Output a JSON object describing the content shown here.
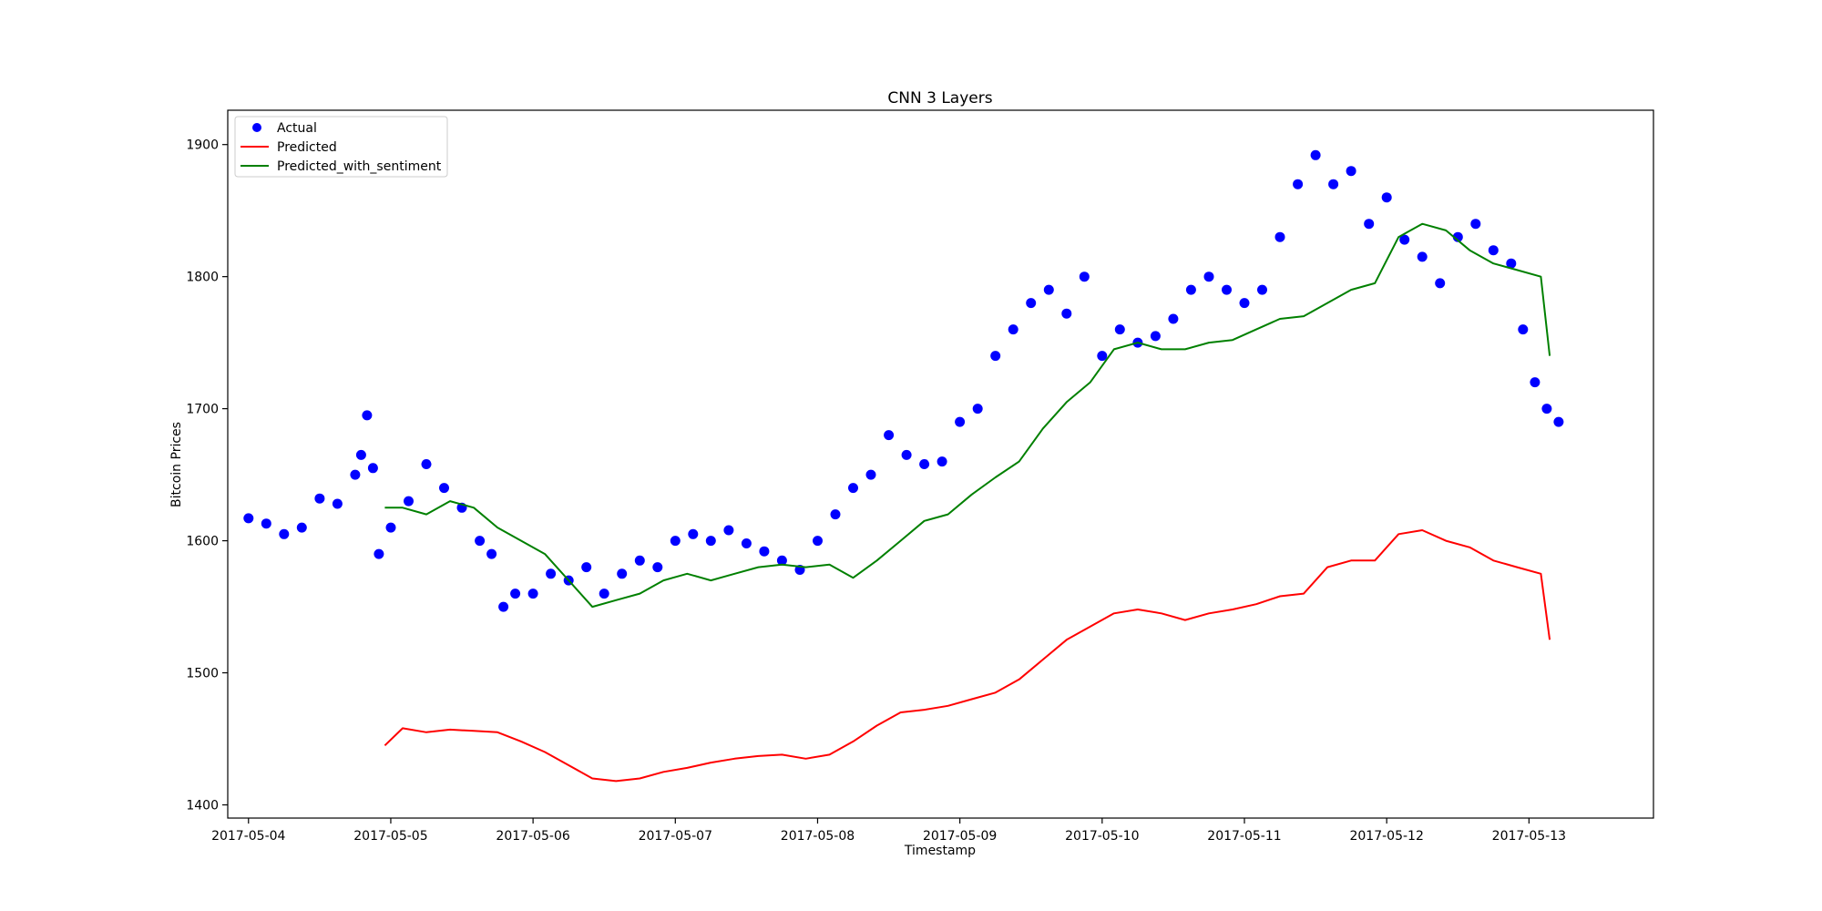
{
  "chart_data": {
    "type": "line",
    "title": "CNN 3 Layers",
    "xlabel": "Timestamp",
    "ylabel": "Bitcoin Prices",
    "xlim": [
      "2017-05-03T20:30",
      "2017-05-13T21:00"
    ],
    "ylim": [
      1390,
      1926
    ],
    "x_ticks": [
      "2017-05-04",
      "2017-05-05",
      "2017-05-06",
      "2017-05-07",
      "2017-05-08",
      "2017-05-09",
      "2017-05-10",
      "2017-05-11",
      "2017-05-12",
      "2017-05-13"
    ],
    "y_ticks": [
      1400,
      1500,
      1600,
      1700,
      1800,
      1900
    ],
    "grid": false,
    "legend": {
      "placement": "top-left"
    },
    "series": [
      {
        "name": "Actual",
        "marker": "circle",
        "color": "#0000ff",
        "x": [
          "2017-05-04T00:00",
          "2017-05-04T03:00",
          "2017-05-04T06:00",
          "2017-05-04T09:00",
          "2017-05-04T12:00",
          "2017-05-04T15:00",
          "2017-05-04T18:00",
          "2017-05-04T19:00",
          "2017-05-04T20:00",
          "2017-05-04T21:00",
          "2017-05-04T22:00",
          "2017-05-05T00:00",
          "2017-05-05T03:00",
          "2017-05-05T06:00",
          "2017-05-05T09:00",
          "2017-05-05T12:00",
          "2017-05-05T15:00",
          "2017-05-05T17:00",
          "2017-05-05T19:00",
          "2017-05-05T21:00",
          "2017-05-06T00:00",
          "2017-05-06T03:00",
          "2017-05-06T06:00",
          "2017-05-06T09:00",
          "2017-05-06T12:00",
          "2017-05-06T15:00",
          "2017-05-06T18:00",
          "2017-05-06T21:00",
          "2017-05-07T00:00",
          "2017-05-07T03:00",
          "2017-05-07T06:00",
          "2017-05-07T09:00",
          "2017-05-07T12:00",
          "2017-05-07T15:00",
          "2017-05-07T18:00",
          "2017-05-07T21:00",
          "2017-05-08T00:00",
          "2017-05-08T03:00",
          "2017-05-08T06:00",
          "2017-05-08T09:00",
          "2017-05-08T12:00",
          "2017-05-08T15:00",
          "2017-05-08T18:00",
          "2017-05-08T21:00",
          "2017-05-09T00:00",
          "2017-05-09T03:00",
          "2017-05-09T06:00",
          "2017-05-09T09:00",
          "2017-05-09T12:00",
          "2017-05-09T15:00",
          "2017-05-09T18:00",
          "2017-05-09T21:00",
          "2017-05-10T00:00",
          "2017-05-10T03:00",
          "2017-05-10T06:00",
          "2017-05-10T09:00",
          "2017-05-10T12:00",
          "2017-05-10T15:00",
          "2017-05-10T18:00",
          "2017-05-10T21:00",
          "2017-05-11T00:00",
          "2017-05-11T03:00",
          "2017-05-11T06:00",
          "2017-05-11T09:00",
          "2017-05-11T12:00",
          "2017-05-11T15:00",
          "2017-05-11T18:00",
          "2017-05-11T21:00",
          "2017-05-12T00:00",
          "2017-05-12T03:00",
          "2017-05-12T06:00",
          "2017-05-12T09:00",
          "2017-05-12T12:00",
          "2017-05-12T15:00",
          "2017-05-12T18:00",
          "2017-05-12T21:00",
          "2017-05-12T23:00",
          "2017-05-13T01:00",
          "2017-05-13T03:00",
          "2017-05-13T05:00"
        ],
        "values": [
          1617,
          1613,
          1605,
          1610,
          1632,
          1628,
          1650,
          1665,
          1695,
          1655,
          1590,
          1610,
          1630,
          1658,
          1640,
          1625,
          1600,
          1590,
          1550,
          1560,
          1560,
          1575,
          1570,
          1580,
          1560,
          1575,
          1585,
          1580,
          1600,
          1605,
          1600,
          1608,
          1598,
          1592,
          1585,
          1578,
          1600,
          1620,
          1640,
          1650,
          1680,
          1665,
          1658,
          1660,
          1690,
          1700,
          1740,
          1760,
          1780,
          1790,
          1772,
          1800,
          1740,
          1760,
          1750,
          1755,
          1768,
          1790,
          1800,
          1790,
          1780,
          1790,
          1830,
          1870,
          1892,
          1870,
          1880,
          1840,
          1860,
          1828,
          1815,
          1795,
          1830,
          1840,
          1820,
          1810,
          1760,
          1720,
          1700,
          1690
        ]
      },
      {
        "name": "Predicted",
        "color": "#ff0000",
        "x": [
          "2017-05-04T23:00",
          "2017-05-05T02:00",
          "2017-05-05T06:00",
          "2017-05-05T10:00",
          "2017-05-05T14:00",
          "2017-05-05T18:00",
          "2017-05-05T22:00",
          "2017-05-06T02:00",
          "2017-05-06T06:00",
          "2017-05-06T10:00",
          "2017-05-06T14:00",
          "2017-05-06T18:00",
          "2017-05-06T22:00",
          "2017-05-07T02:00",
          "2017-05-07T06:00",
          "2017-05-07T10:00",
          "2017-05-07T14:00",
          "2017-05-07T18:00",
          "2017-05-07T22:00",
          "2017-05-08T02:00",
          "2017-05-08T06:00",
          "2017-05-08T10:00",
          "2017-05-08T14:00",
          "2017-05-08T18:00",
          "2017-05-08T22:00",
          "2017-05-09T02:00",
          "2017-05-09T06:00",
          "2017-05-09T10:00",
          "2017-05-09T14:00",
          "2017-05-09T18:00",
          "2017-05-09T22:00",
          "2017-05-10T02:00",
          "2017-05-10T06:00",
          "2017-05-10T10:00",
          "2017-05-10T14:00",
          "2017-05-10T18:00",
          "2017-05-10T22:00",
          "2017-05-11T02:00",
          "2017-05-11T06:00",
          "2017-05-11T10:00",
          "2017-05-11T14:00",
          "2017-05-11T18:00",
          "2017-05-11T22:00",
          "2017-05-12T02:00",
          "2017-05-12T06:00",
          "2017-05-12T10:00",
          "2017-05-12T14:00",
          "2017-05-12T18:00",
          "2017-05-12T22:00",
          "2017-05-13T02:00",
          "2017-05-13T03:30"
        ],
        "values": [
          1445,
          1458,
          1455,
          1457,
          1456,
          1455,
          1448,
          1440,
          1430,
          1420,
          1418,
          1420,
          1425,
          1428,
          1432,
          1435,
          1437,
          1438,
          1435,
          1438,
          1448,
          1460,
          1470,
          1472,
          1475,
          1480,
          1485,
          1495,
          1510,
          1525,
          1535,
          1545,
          1548,
          1545,
          1540,
          1545,
          1548,
          1552,
          1558,
          1560,
          1580,
          1585,
          1585,
          1605,
          1608,
          1600,
          1595,
          1585,
          1580,
          1575,
          1525
        ]
      },
      {
        "name": "Predicted_with_sentiment",
        "color": "#008000",
        "x": [
          "2017-05-04T23:00",
          "2017-05-05T02:00",
          "2017-05-05T06:00",
          "2017-05-05T10:00",
          "2017-05-05T14:00",
          "2017-05-05T18:00",
          "2017-05-05T22:00",
          "2017-05-06T02:00",
          "2017-05-06T06:00",
          "2017-05-06T10:00",
          "2017-05-06T14:00",
          "2017-05-06T18:00",
          "2017-05-06T22:00",
          "2017-05-07T02:00",
          "2017-05-07T06:00",
          "2017-05-07T10:00",
          "2017-05-07T14:00",
          "2017-05-07T18:00",
          "2017-05-07T22:00",
          "2017-05-08T02:00",
          "2017-05-08T06:00",
          "2017-05-08T10:00",
          "2017-05-08T14:00",
          "2017-05-08T18:00",
          "2017-05-08T22:00",
          "2017-05-09T02:00",
          "2017-05-09T06:00",
          "2017-05-09T10:00",
          "2017-05-09T14:00",
          "2017-05-09T18:00",
          "2017-05-09T22:00",
          "2017-05-10T02:00",
          "2017-05-10T06:00",
          "2017-05-10T10:00",
          "2017-05-10T14:00",
          "2017-05-10T18:00",
          "2017-05-10T22:00",
          "2017-05-11T02:00",
          "2017-05-11T06:00",
          "2017-05-11T10:00",
          "2017-05-11T14:00",
          "2017-05-11T18:00",
          "2017-05-11T22:00",
          "2017-05-12T02:00",
          "2017-05-12T06:00",
          "2017-05-12T10:00",
          "2017-05-12T14:00",
          "2017-05-12T18:00",
          "2017-05-12T22:00",
          "2017-05-13T02:00",
          "2017-05-13T03:30"
        ],
        "values": [
          1625,
          1625,
          1620,
          1630,
          1625,
          1610,
          1600,
          1590,
          1570,
          1550,
          1555,
          1560,
          1570,
          1575,
          1570,
          1575,
          1580,
          1582,
          1580,
          1582,
          1572,
          1585,
          1600,
          1615,
          1620,
          1635,
          1648,
          1660,
          1685,
          1705,
          1720,
          1745,
          1750,
          1745,
          1745,
          1750,
          1752,
          1760,
          1768,
          1770,
          1780,
          1790,
          1795,
          1830,
          1840,
          1835,
          1820,
          1810,
          1805,
          1800,
          1740
        ]
      }
    ]
  }
}
